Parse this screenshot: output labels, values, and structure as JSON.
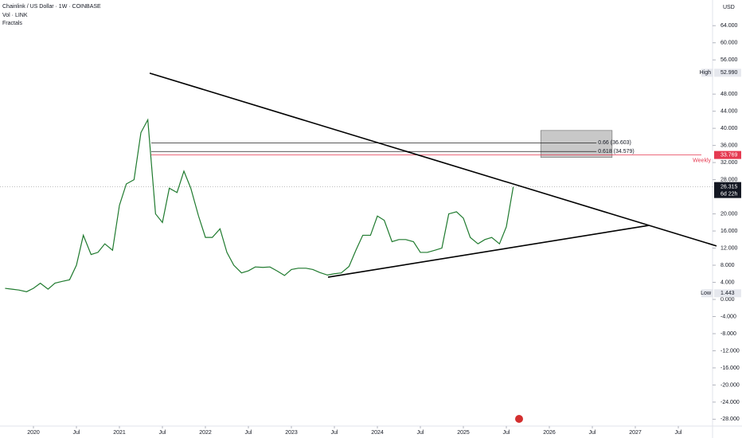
{
  "chart_data": {
    "type": "line",
    "title": "Chainlink / US Dollar · 1W · COINBASE",
    "indicators": [
      "Vol · LINK",
      "Fractals"
    ],
    "currency": "USD",
    "color": "#1f7a2e",
    "x": [
      2019.67,
      2019.75,
      2019.83,
      2019.92,
      2020.0,
      2020.08,
      2020.17,
      2020.25,
      2020.33,
      2020.42,
      2020.5,
      2020.58,
      2020.67,
      2020.75,
      2020.83,
      2020.92,
      2021.0,
      2021.08,
      2021.17,
      2021.25,
      2021.33,
      2021.42,
      2021.5,
      2021.58,
      2021.67,
      2021.75,
      2021.83,
      2021.92,
      2022.0,
      2022.08,
      2022.17,
      2022.25,
      2022.33,
      2022.42,
      2022.5,
      2022.58,
      2022.67,
      2022.75,
      2022.83,
      2022.92,
      2023.0,
      2023.08,
      2023.17,
      2023.25,
      2023.33,
      2023.42,
      2023.5,
      2023.58,
      2023.67,
      2023.75,
      2023.83,
      2023.92,
      2024.0,
      2024.08,
      2024.17,
      2024.25,
      2024.33,
      2024.42,
      2024.5,
      2024.58,
      2024.67,
      2024.75,
      2024.83,
      2024.92,
      2025.0,
      2025.08,
      2025.17,
      2025.25,
      2025.33,
      2025.42,
      2025.5,
      2025.58
    ],
    "values": [
      2.6,
      2.4,
      2.2,
      1.8,
      2.6,
      3.8,
      2.4,
      3.8,
      4.2,
      4.6,
      8.0,
      15.0,
      10.5,
      11.0,
      13.0,
      11.5,
      22.0,
      27.0,
      28.0,
      39.0,
      42.0,
      20.0,
      18.0,
      26.0,
      25.0,
      30.0,
      26.0,
      19.5,
      14.5,
      14.5,
      16.5,
      11.0,
      8.0,
      6.2,
      6.7,
      7.6,
      7.5,
      7.6,
      6.7,
      5.6,
      7.0,
      7.3,
      7.3,
      7.0,
      6.3,
      5.7,
      6.0,
      6.2,
      7.7,
      11.5,
      15.0,
      15.0,
      19.5,
      18.5,
      13.5,
      14.0,
      14.0,
      13.5,
      11.0,
      11.0,
      11.5,
      12.0,
      20.0,
      20.5,
      19.0,
      14.5,
      13.0,
      14.0,
      14.5,
      13.0,
      17.0,
      26.3
    ],
    "xlim": [
      2019.611,
      2027.898
    ],
    "ylim": [
      -29.6,
      70
    ],
    "xticks": [
      2020,
      {
        "value": 2020.5,
        "label": "Jul"
      },
      2021,
      {
        "value": 2021.5,
        "label": "Jul"
      },
      2022,
      {
        "value": 2022.5,
        "label": "Jul"
      },
      2023,
      {
        "value": 2023.5,
        "label": "Jul"
      },
      2024,
      {
        "value": 2024.5,
        "label": "Jul"
      },
      2025,
      {
        "value": 2025.5,
        "label": "Jul"
      },
      2026,
      {
        "value": 2026.5,
        "label": "Jul"
      },
      2027,
      {
        "value": 2027.5,
        "label": "Jul"
      }
    ],
    "yticks": [
      {
        "value": 64,
        "label": "64.000"
      },
      {
        "value": 60,
        "label": "60.000"
      },
      {
        "value": 56,
        "label": "56.000"
      },
      {
        "value": 48,
        "label": "48.000"
      },
      {
        "value": 44,
        "label": "44.000"
      },
      {
        "value": 40,
        "label": "40.000"
      },
      {
        "value": 36,
        "label": "36.000"
      },
      {
        "value": 32,
        "label": "32.000"
      },
      {
        "value": 28,
        "label": "28.000"
      },
      {
        "value": 20,
        "label": "20.000"
      },
      {
        "value": 16,
        "label": "16.000"
      },
      {
        "value": 12,
        "label": "12.000"
      },
      {
        "value": 8,
        "label": "8.000"
      },
      {
        "value": 4,
        "label": "4.000"
      },
      {
        "value": 0,
        "label": "0.000"
      },
      {
        "value": -4,
        "label": "-4.000"
      },
      {
        "value": -8,
        "label": "-8.000"
      },
      {
        "value": -12,
        "label": "-12.000"
      },
      {
        "value": -16,
        "label": "-16.000"
      },
      {
        "value": -20,
        "label": "-20.000"
      },
      {
        "value": -24,
        "label": "-24.000"
      },
      {
        "value": -28,
        "label": "-28.000"
      }
    ],
    "trend_lines": [
      {
        "x": [
          2021.352,
          2027.944
        ],
        "values": [
          52.9,
          12.5
        ]
      },
      {
        "x": [
          2023.426,
          2027.157
        ],
        "values": [
          5.2,
          17.3
        ]
      }
    ],
    "levels": [
      {
        "label": "0.66 (36.603)",
        "value": 36.603
      },
      {
        "label": "0.618 (34.579)",
        "value": 34.579
      }
    ],
    "zone": {
      "x": [
        2025.9,
        2026.73
      ],
      "values": [
        39.5,
        33.2
      ]
    },
    "price_tags": [
      {
        "name": "High",
        "value": 52.99,
        "label": "52.990"
      },
      {
        "name": "Weekly",
        "value": 33.769,
        "label": "33.769"
      },
      {
        "name": "6d 22h",
        "value": 26.315,
        "label": "26.315"
      },
      {
        "name": "Low",
        "value": 1.443,
        "label": "1.443"
      }
    ]
  }
}
